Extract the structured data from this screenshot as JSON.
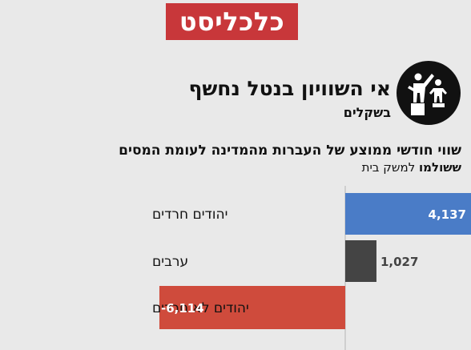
{
  "brand": {
    "logo_text": "כלכליסט",
    "logo_color": "#c8373a"
  },
  "header": {
    "title": "אי השוויון בנטל נחשף",
    "subtitle": "בשקלים",
    "icon": "two-figures-on-pedestals-icon"
  },
  "description": {
    "line1": "שווי חודשי ממוצע של העברות מהמדינה לעומת המסים",
    "line2_bold": "ששולמו",
    "line2_rest": "למשק בית"
  },
  "chart_data": {
    "type": "bar",
    "orientation": "horizontal",
    "categories": [
      "יהודים חרדים",
      "ערבים",
      "יהודים לא חרדים"
    ],
    "values": [
      4137,
      1027,
      -6114
    ],
    "value_labels": [
      "4,137",
      "1,027",
      "-6,114"
    ],
    "colors": [
      "#4a7cc7",
      "#444444",
      "#cf4b3c"
    ],
    "title": "",
    "xlabel": "",
    "ylabel": "",
    "grid": false
  }
}
